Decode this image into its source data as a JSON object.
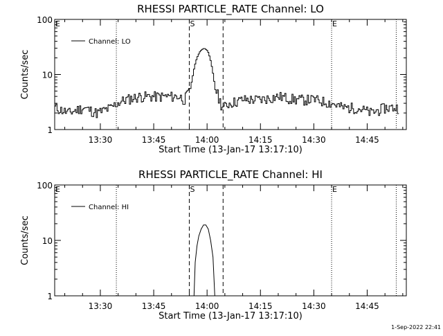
{
  "footer": {
    "timestamp": "1-Sep-2022 22:41"
  },
  "chart_data": [
    {
      "type": "line",
      "title": "RHESSI PARTICLE_RATE Channel: LO",
      "xlabel": "Start Time (13-Jan-17 13:17:10)",
      "ylabel": "Counts/sec",
      "yscale": "log",
      "ylim": [
        1,
        100
      ],
      "y_ticks": [
        {
          "v": 1,
          "label": "1"
        },
        {
          "v": 10,
          "label": "10"
        },
        {
          "v": 100,
          "label": "100"
        }
      ],
      "xlim": [
        "13:17:10",
        "14:56:00"
      ],
      "x_ticks": [
        "13:30",
        "13:45",
        "14:00",
        "14:15",
        "14:30",
        "14:45"
      ],
      "legend": {
        "entry": "Channel: LO",
        "position": "top-left"
      },
      "markers": [
        {
          "time": "13:17:10",
          "label": "E",
          "style": "none"
        },
        {
          "time": "13:34:30",
          "label": "",
          "style": "dotted"
        },
        {
          "time": "13:55:00",
          "label": "S",
          "style": "dashed"
        },
        {
          "time": "14:04:30",
          "label": "",
          "style": "dashed"
        },
        {
          "time": "14:35:00",
          "label": "E",
          "style": "dotted"
        },
        {
          "time": "14:53:10",
          "label": "",
          "style": "dotted"
        }
      ],
      "series": [
        {
          "name": "Channel: LO",
          "x": [
            "13:17:10",
            "13:21:00",
            "13:25:00",
            "13:29:00",
            "13:33:00",
            "13:34:30",
            "13:37:00",
            "13:41:00",
            "13:45:00",
            "13:49:00",
            "13:52:00",
            "13:53:30",
            "13:55:00",
            "13:55:40",
            "13:56:20",
            "13:57:00",
            "13:58:00",
            "13:59:00",
            "14:00:00",
            "14:00:40",
            "14:01:20",
            "14:02:00",
            "14:03:00",
            "14:03:40",
            "14:04:30",
            "14:06:00",
            "14:10:00",
            "14:15:00",
            "14:20:00",
            "14:25:00",
            "14:30:00",
            "14:35:00",
            "14:38:00",
            "14:42:00",
            "14:46:00",
            "14:50:00",
            "14:53:00"
          ],
          "y": [
            2.5,
            2,
            2.5,
            2,
            2.5,
            3,
            3.5,
            4,
            4,
            4,
            4,
            3.5,
            5,
            8,
            14,
            20,
            27,
            30,
            27,
            20,
            12,
            6,
            4,
            3,
            2.5,
            3,
            3.5,
            3.5,
            4,
            3.5,
            3.5,
            3,
            2.5,
            2.5,
            2,
            2.5,
            2.5
          ],
          "noise": true
        }
      ]
    },
    {
      "type": "line",
      "title": "RHESSI PARTICLE_RATE Channel: HI",
      "xlabel": "Start Time (13-Jan-17 13:17:10)",
      "ylabel": "Counts/sec",
      "yscale": "log",
      "ylim": [
        1,
        100
      ],
      "y_ticks": [
        {
          "v": 1,
          "label": "1"
        },
        {
          "v": 10,
          "label": "10"
        },
        {
          "v": 100,
          "label": "100"
        }
      ],
      "xlim": [
        "13:17:10",
        "14:56:00"
      ],
      "x_ticks": [
        "13:30",
        "13:45",
        "14:00",
        "14:15",
        "14:30",
        "14:45"
      ],
      "legend": {
        "entry": "Channel: HI",
        "position": "top-left"
      },
      "markers": [
        {
          "time": "13:17:10",
          "label": "E",
          "style": "none"
        },
        {
          "time": "13:34:30",
          "label": "",
          "style": "dotted"
        },
        {
          "time": "13:55:00",
          "label": "S",
          "style": "dashed"
        },
        {
          "time": "14:04:30",
          "label": "",
          "style": "dashed"
        },
        {
          "time": "14:35:00",
          "label": "E",
          "style": "dotted"
        },
        {
          "time": "14:53:10",
          "label": "",
          "style": "dotted"
        }
      ],
      "series": [
        {
          "name": "Channel: HI",
          "x": [
            "13:56:20",
            "13:56:40",
            "13:57:10",
            "13:57:40",
            "13:58:20",
            "13:59:00",
            "13:59:40",
            "14:00:20",
            "14:01:00",
            "14:01:40",
            "14:02:10"
          ],
          "y": [
            1,
            4,
            8,
            12,
            16,
            19,
            19,
            16,
            10,
            5,
            1
          ],
          "noise": false
        }
      ]
    }
  ]
}
